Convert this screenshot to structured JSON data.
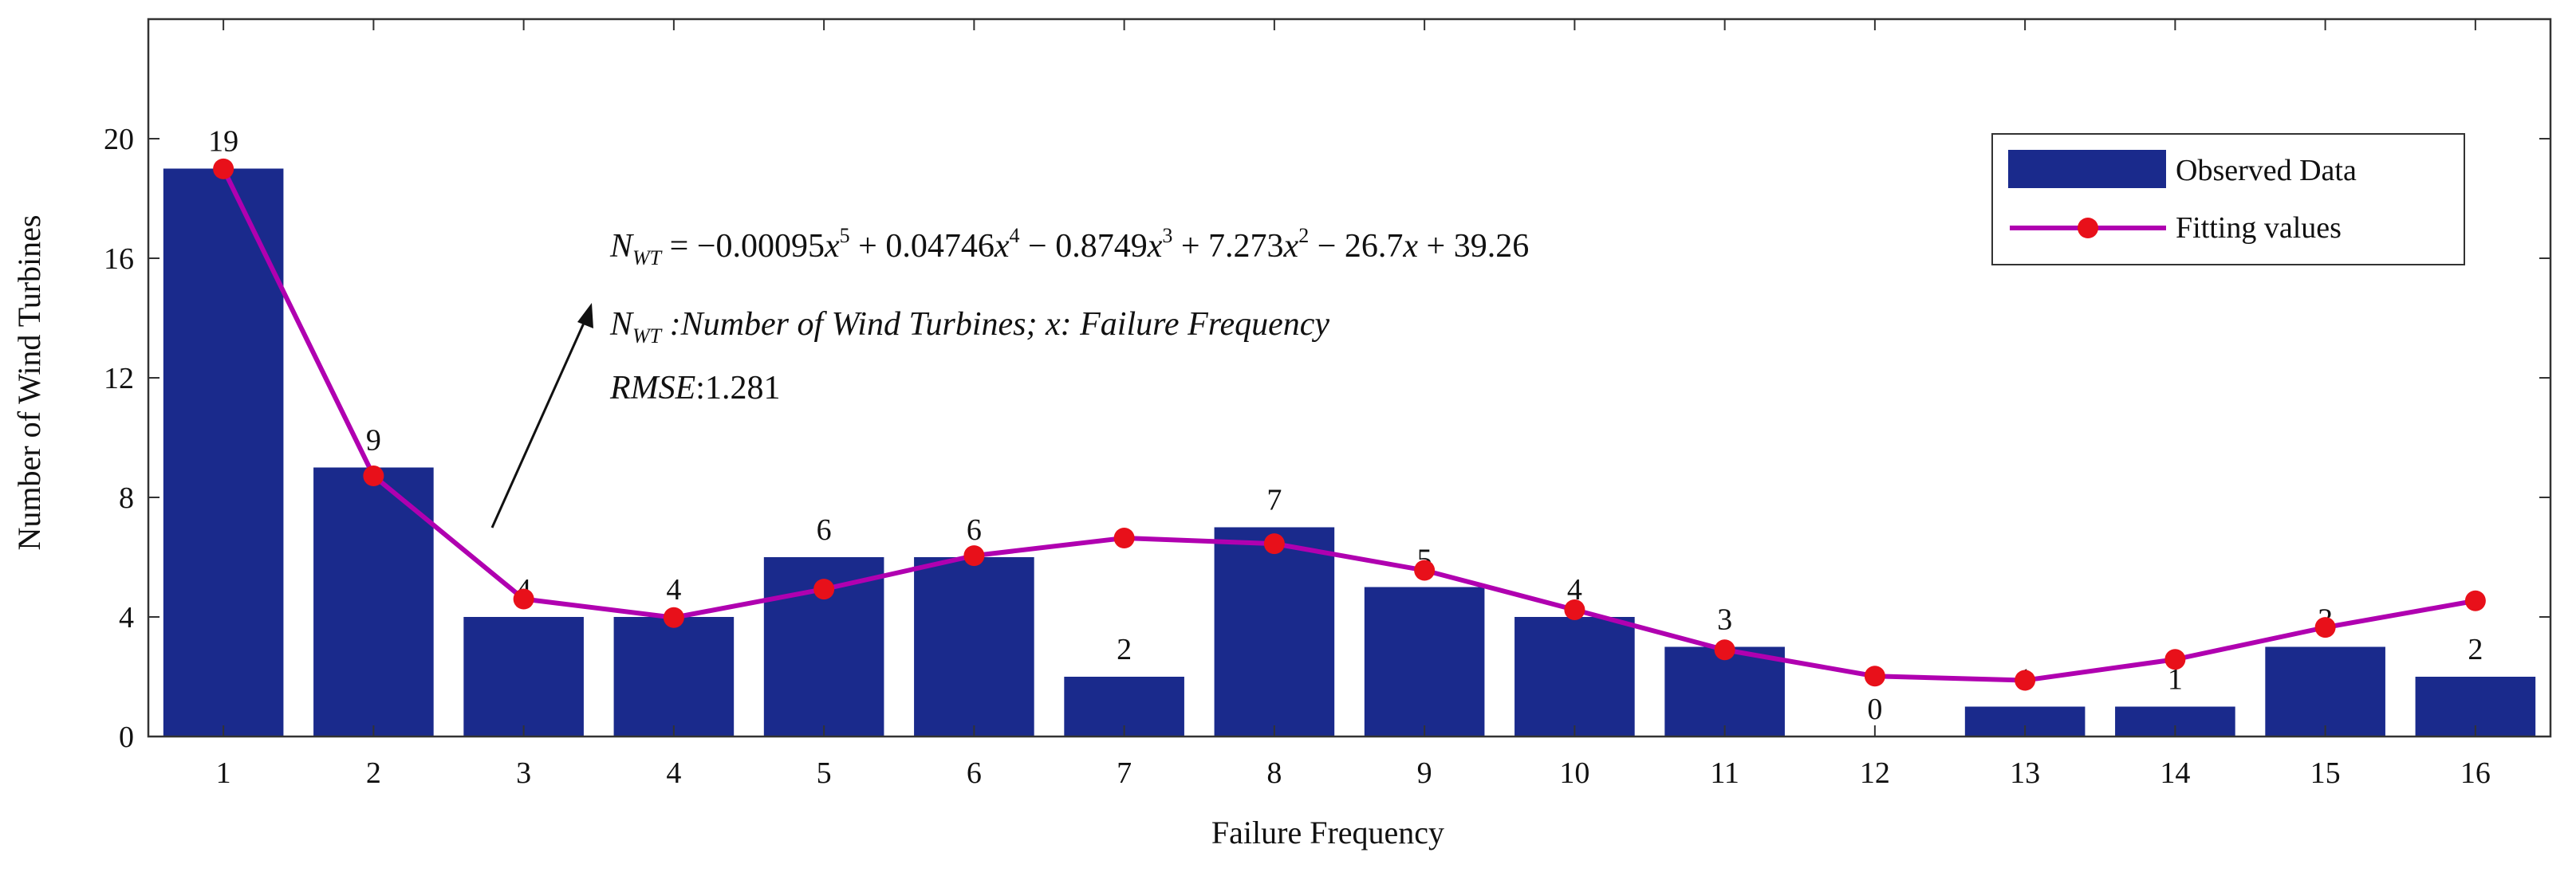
{
  "chart_data": {
    "type": "bar",
    "xlabel": "Failure  Frequency",
    "ylabel": "Number of Wind Turbines",
    "categories": [
      "1",
      "2",
      "3",
      "4",
      "5",
      "6",
      "7",
      "8",
      "9",
      "10",
      "11",
      "12",
      "13",
      "14",
      "15",
      "16"
    ],
    "x": [
      1,
      2,
      3,
      4,
      5,
      6,
      7,
      8,
      9,
      10,
      11,
      12,
      13,
      14,
      15,
      16
    ],
    "xlim": [
      0.5,
      16.5
    ],
    "ylim": [
      0,
      24
    ],
    "yticks": [
      0,
      4,
      8,
      12,
      16,
      20
    ],
    "grid": false,
    "legend_position": "top-right",
    "series": [
      {
        "name": "Observed Data",
        "type": "bar",
        "color": "#1a2a8c",
        "values": [
          19,
          9,
          4,
          4,
          6,
          6,
          2,
          7,
          5,
          4,
          3,
          0,
          1,
          1,
          3,
          2
        ],
        "labels": [
          "19",
          "9",
          "4",
          "4",
          "6",
          "6",
          "2",
          "7",
          "5",
          "4",
          "3",
          "0",
          "1",
          "1",
          "3",
          "2"
        ]
      },
      {
        "name": "Fitting values",
        "type": "line",
        "color": "#b000b0",
        "marker_color": "#e8101a",
        "values": [
          18.99,
          8.72,
          4.6,
          3.98,
          4.93,
          6.05,
          6.64,
          6.45,
          5.56,
          4.24,
          2.9,
          2.02,
          1.88,
          2.58,
          3.65,
          4.54
        ]
      }
    ],
    "annotations": {
      "equation": {
        "lhs": "N",
        "lhs_sub": "WT",
        "rhs": [
          {
            "t": " = −0.00095"
          },
          {
            "t": "x",
            "i": true
          },
          {
            "t": "5",
            "sup": true
          },
          {
            "t": " + 0.04746"
          },
          {
            "t": "x",
            "i": true
          },
          {
            "t": "4",
            "sup": true
          },
          {
            "t": " − 0.8749"
          },
          {
            "t": "x",
            "i": true
          },
          {
            "t": "3",
            "sup": true
          },
          {
            "t": " + 7.273"
          },
          {
            "t": "x",
            "i": true
          },
          {
            "t": "2",
            "sup": true
          },
          {
            "t": " − 26.7"
          },
          {
            "t": "x",
            "i": true
          },
          {
            "t": " + 39.26"
          }
        ]
      },
      "definition": {
        "n": "N",
        "n_sub": "WT",
        "n_desc": " :Number of Wind Turbines;  ",
        "x": "x",
        "x_desc": ": Failure Frequency"
      },
      "rmse": {
        "label": "RMSE",
        "value": ":1.281"
      }
    }
  }
}
